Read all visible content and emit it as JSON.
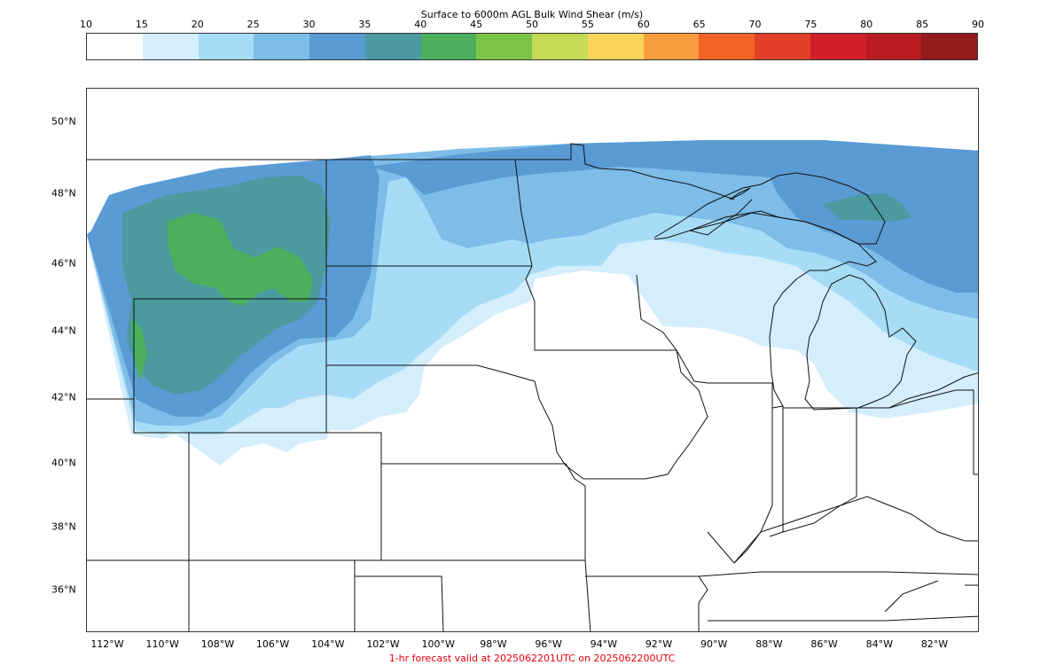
{
  "colorbar": {
    "title": "Surface to 6000m AGL Bulk Wind Shear (m/s)",
    "ticks": [
      "10",
      "15",
      "20",
      "25",
      "30",
      "35",
      "40",
      "45",
      "50",
      "55",
      "60",
      "65",
      "70",
      "75",
      "80",
      "85",
      "90"
    ],
    "colors": [
      "#ffffff",
      "#d4eefb",
      "#a7dcf7",
      "#7dbde8",
      "#5a9bd4",
      "#4a9a9f",
      "#4caf5e",
      "#7cc34a",
      "#c5da56",
      "#f8d55a",
      "#f69c3c",
      "#f26227",
      "#e24028",
      "#d11f2a",
      "#b81b22",
      "#941a1c"
    ]
  },
  "map": {
    "lat_labels": [
      "50°N",
      "48°N",
      "46°N",
      "44°N",
      "42°N",
      "40°N",
      "38°N",
      "36°N"
    ],
    "lon_labels": [
      "112°W",
      "110°W",
      "108°W",
      "106°W",
      "104°W",
      "102°W",
      "100°W",
      "98°W",
      "96°W",
      "94°W",
      "92°W",
      "90°W",
      "88°W",
      "86°W",
      "84°W",
      "82°W"
    ],
    "shear_levels": [
      {
        "range": "15-20",
        "color": "#d4eefb"
      },
      {
        "range": "20-25",
        "color": "#a7dcf7"
      },
      {
        "range": "25-30",
        "color": "#7dbde8"
      },
      {
        "range": "30-35",
        "color": "#5a9bd4"
      },
      {
        "range": "35-40",
        "color": "#4a9a9f"
      },
      {
        "range": "40-45",
        "color": "#4caf5e"
      }
    ]
  },
  "footer": {
    "text": "1-hr forecast valid at 2025062201UTC on 2025062200UTC"
  }
}
